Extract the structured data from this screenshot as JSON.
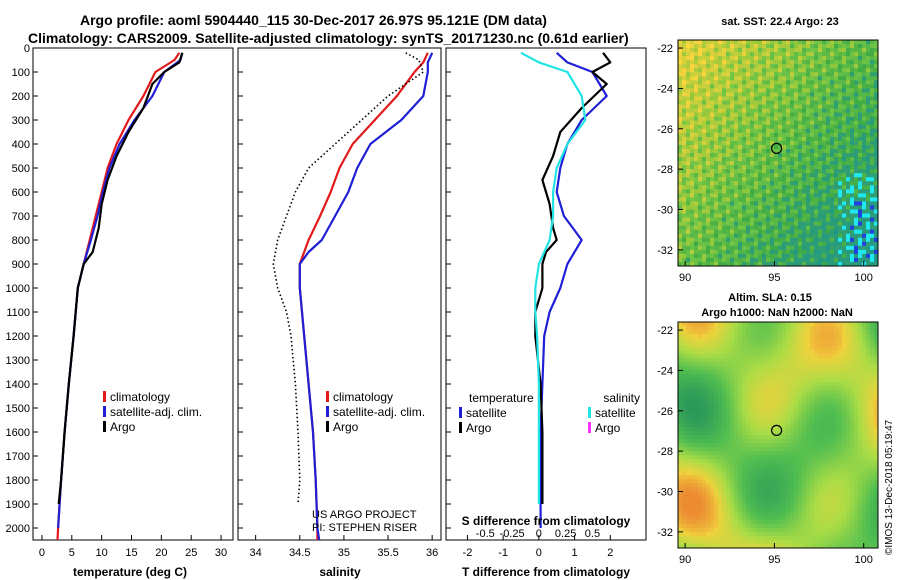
{
  "header": {
    "line1": "Argo profile: aoml 5904440_115 30-Dec-2017 26.97S 95.121E (DM data)",
    "line2": "Climatology: CARS2009. Satellite-adjusted climatology: synTS_20171230.nc (0.61d earlier)"
  },
  "colors": {
    "climatology": "#e31a1c",
    "satellite": "#1f1fd6",
    "argo": "#000000",
    "sat_salinity": "#22e4e4",
    "argo_salinity": "#ff33ff"
  },
  "depth_axis": {
    "min": 0,
    "max": 2050,
    "ticks": [
      0,
      100,
      200,
      300,
      400,
      500,
      600,
      700,
      800,
      900,
      1000,
      1100,
      1200,
      1300,
      1400,
      1500,
      1600,
      1700,
      1800,
      1900,
      2000
    ]
  },
  "chart_data": [
    {
      "type": "line",
      "id": "temperature",
      "xlabel": "temperature (deg C)",
      "xlim": [
        -1.5,
        32
      ],
      "xticks": [
        0,
        5,
        10,
        15,
        20,
        25,
        30
      ],
      "legend": {
        "climatology": "climatology",
        "satellite": "satellite-adj. clim.",
        "argo": "Argo"
      },
      "series": [
        {
          "name": "climatology",
          "color_key": "climatology",
          "points": [
            [
              23,
              20
            ],
            [
              22.2,
              50
            ],
            [
              19,
              100
            ],
            [
              17,
              200
            ],
            [
              14.5,
              300
            ],
            [
              12.5,
              400
            ],
            [
              11,
              500
            ],
            [
              10,
              600
            ],
            [
              9,
              700
            ],
            [
              8,
              800
            ],
            [
              7,
              900
            ],
            [
              6,
              1000
            ],
            [
              5.3,
              1200
            ],
            [
              4.5,
              1400
            ],
            [
              3.8,
              1600
            ],
            [
              3.2,
              1800
            ],
            [
              2.7,
              2000
            ],
            [
              2.6,
              2050
            ]
          ]
        },
        {
          "name": "satellite",
          "color_key": "satellite",
          "points": [
            [
              23.5,
              20
            ],
            [
              23.2,
              50
            ],
            [
              20.5,
              100
            ],
            [
              18.5,
              200
            ],
            [
              15.5,
              300
            ],
            [
              13,
              400
            ],
            [
              11.3,
              500
            ],
            [
              10.2,
              600
            ],
            [
              9.3,
              700
            ],
            [
              8.2,
              800
            ],
            [
              7,
              900
            ],
            [
              6,
              1000
            ],
            [
              5.3,
              1200
            ],
            [
              4.5,
              1400
            ],
            [
              3.8,
              1600
            ],
            [
              3.2,
              1800
            ],
            [
              2.7,
              2000
            ]
          ]
        },
        {
          "name": "argo",
          "color_key": "argo",
          "points": [
            [
              23.5,
              20
            ],
            [
              23,
              60
            ],
            [
              20.5,
              100
            ],
            [
              18.5,
              150
            ],
            [
              17,
              250
            ],
            [
              14.5,
              350
            ],
            [
              12.5,
              450
            ],
            [
              11,
              550
            ],
            [
              10,
              650
            ],
            [
              9.5,
              750
            ],
            [
              8.5,
              850
            ],
            [
              7,
              900
            ],
            [
              6,
              1000
            ],
            [
              5.3,
              1200
            ],
            [
              4.5,
              1400
            ],
            [
              3.8,
              1600
            ],
            [
              3.2,
              1800
            ],
            [
              2.8,
              1900
            ]
          ]
        }
      ]
    },
    {
      "type": "line",
      "id": "salinity",
      "xlabel": "salinity",
      "xlim": [
        33.8,
        36.1
      ],
      "xticks": [
        34,
        34.5,
        35,
        35.5,
        36
      ],
      "legend": {
        "climatology": "climatology",
        "satellite": "satellite-adj. clim.",
        "argo": "Argo"
      },
      "credit1": "US ARGO PROJECT",
      "credit2": "PI: STEPHEN RISER",
      "series": [
        {
          "name": "climatology",
          "color_key": "climatology",
          "points": [
            [
              35.95,
              20
            ],
            [
              35.9,
              60
            ],
            [
              35.8,
              100
            ],
            [
              35.6,
              200
            ],
            [
              35.35,
              300
            ],
            [
              35.1,
              400
            ],
            [
              34.95,
              500
            ],
            [
              34.85,
              600
            ],
            [
              34.73,
              700
            ],
            [
              34.6,
              800
            ],
            [
              34.5,
              900
            ],
            [
              34.5,
              1000
            ],
            [
              34.55,
              1200
            ],
            [
              34.6,
              1400
            ],
            [
              34.65,
              1600
            ],
            [
              34.68,
              1800
            ],
            [
              34.7,
              2000
            ],
            [
              34.7,
              2050
            ]
          ]
        },
        {
          "name": "satellite",
          "color_key": "satellite",
          "points": [
            [
              36,
              20
            ],
            [
              35.95,
              60
            ],
            [
              35.95,
              100
            ],
            [
              35.9,
              200
            ],
            [
              35.65,
              300
            ],
            [
              35.3,
              400
            ],
            [
              35.15,
              500
            ],
            [
              35.05,
              600
            ],
            [
              34.9,
              700
            ],
            [
              34.75,
              800
            ],
            [
              34.6,
              850
            ],
            [
              34.5,
              900
            ],
            [
              34.5,
              1000
            ],
            [
              34.55,
              1200
            ],
            [
              34.6,
              1400
            ],
            [
              34.65,
              1600
            ],
            [
              34.68,
              1800
            ],
            [
              34.7,
              2000
            ],
            [
              34.72,
              2050
            ]
          ]
        },
        {
          "name": "argo",
          "color_key": "argo",
          "dashed": true,
          "points": [
            [
              35.7,
              20
            ],
            [
              35.85,
              50
            ],
            [
              35.9,
              100
            ],
            [
              35.7,
              150
            ],
            [
              35.5,
              200
            ],
            [
              35.2,
              300
            ],
            [
              34.9,
              400
            ],
            [
              34.6,
              500
            ],
            [
              34.45,
              600
            ],
            [
              34.35,
              700
            ],
            [
              34.25,
              800
            ],
            [
              34.2,
              900
            ],
            [
              34.25,
              1000
            ],
            [
              34.35,
              1100
            ],
            [
              34.4,
              1200
            ],
            [
              34.45,
              1400
            ],
            [
              34.48,
              1600
            ],
            [
              34.5,
              1800
            ],
            [
              34.48,
              1900
            ]
          ]
        }
      ]
    },
    {
      "type": "line",
      "id": "differences",
      "xlabel": "T difference from climatology",
      "xlim": [
        -2.6,
        3
      ],
      "xticks": [
        -2,
        -1,
        0,
        1,
        2
      ],
      "xticks_top": [
        "-0.5",
        "-0.25",
        "0",
        "0.25",
        "0.5"
      ],
      "top_label": "S difference from climatology",
      "legend": {
        "temperature": "temperature",
        "salinity": "salinity",
        "satellite": "satellite",
        "argo": "Argo",
        "sat2": "satellite",
        "argo2": "Argo"
      },
      "series": [
        {
          "name": "T satellite",
          "color_key": "satellite",
          "points": [
            [
              0.5,
              20
            ],
            [
              0.8,
              60
            ],
            [
              1.5,
              100
            ],
            [
              1.9,
              200
            ],
            [
              1.2,
              300
            ],
            [
              0.8,
              400
            ],
            [
              0.6,
              500
            ],
            [
              0.5,
              600
            ],
            [
              0.7,
              700
            ],
            [
              1.2,
              800
            ],
            [
              0.8,
              900
            ],
            [
              0.6,
              1000
            ],
            [
              0.3,
              1100
            ],
            [
              0.15,
              1200
            ],
            [
              0.1,
              1400
            ],
            [
              0.05,
              1600
            ],
            [
              0.05,
              2000
            ]
          ]
        },
        {
          "name": "T argo",
          "color_key": "argo",
          "points": [
            [
              1.8,
              20
            ],
            [
              2,
              60
            ],
            [
              1.5,
              100
            ],
            [
              1.9,
              150
            ],
            [
              1.2,
              250
            ],
            [
              0.6,
              350
            ],
            [
              0.4,
              450
            ],
            [
              0.1,
              550
            ],
            [
              0.3,
              650
            ],
            [
              0.4,
              750
            ],
            [
              0.5,
              800
            ],
            [
              0.2,
              850
            ],
            [
              0.1,
              900
            ],
            [
              0.1,
              1000
            ],
            [
              -0.1,
              1100
            ],
            [
              -0.1,
              1200
            ],
            [
              0.05,
              1400
            ],
            [
              0.1,
              1600
            ],
            [
              0.1,
              1800
            ],
            [
              0.1,
              1900
            ]
          ]
        },
        {
          "name": "S satellite",
          "color_key": "sat_salinity",
          "points": [
            [
              -0.5,
              20
            ],
            [
              0,
              60
            ],
            [
              0.8,
              100
            ],
            [
              1.2,
              200
            ],
            [
              1.3,
              300
            ],
            [
              0.8,
              400
            ],
            [
              0.5,
              500
            ],
            [
              0.4,
              600
            ],
            [
              0.4,
              700
            ],
            [
              0.3,
              800
            ],
            [
              0,
              900
            ],
            [
              -0.1,
              1000
            ],
            [
              -0.1,
              1100
            ],
            [
              -0.05,
              1200
            ],
            [
              0,
              1400
            ],
            [
              0,
              1600
            ],
            [
              0,
              1800
            ],
            [
              0,
              1900
            ]
          ]
        }
      ]
    }
  ],
  "maps": {
    "sst": {
      "title": "sat. SST: 22.4 Argo: 23",
      "xticks": [
        "90",
        "95",
        "100"
      ],
      "yticks": [
        "-22",
        "-24",
        "-26",
        "-28",
        "-30",
        "-32"
      ]
    },
    "sla": {
      "title1": "Altim. SLA: 0.15",
      "title2": "Argo h1000: NaN h2000: NaN",
      "xticks": [
        "90",
        "95",
        "100"
      ],
      "yticks": [
        "-22",
        "-24",
        "-26",
        "-28",
        "-30",
        "-32"
      ]
    },
    "lon_range": [
      89.6,
      100.8
    ],
    "lat_range": [
      -21.6,
      -32.8
    ],
    "argo_lon": 95.121,
    "argo_lat": -26.97
  },
  "watermark": "©IMOS 13-Dec-2018 05:19:47"
}
